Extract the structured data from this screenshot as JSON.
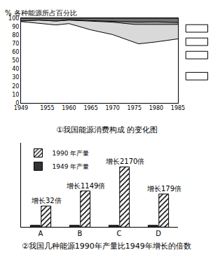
{
  "chart_data": [
    {
      "type": "area",
      "stacked": true,
      "grid": true,
      "title": "①我国能源消费构成 的变化图",
      "ylabel": "% 各种能源所占百分比",
      "x": [
        1949,
        1953,
        1957,
        1960,
        1965,
        1970,
        1975,
        1976,
        1980,
        1985
      ],
      "series": [
        {
          "color": "#ffffff",
          "values": [
            96.3,
            94.3,
            92.3,
            93.9,
            86.5,
            80.9,
            71.9,
            69.9,
            72.2,
            75.8
          ]
        },
        {
          "color": "#d9d9d9",
          "values": [
            0.7,
            3.8,
            4.6,
            4.1,
            10.3,
            14.7,
            21.1,
            23.0,
            20.7,
            17.1
          ]
        },
        {
          "color": "#a6a6a6",
          "values": [
            0,
            0,
            0.1,
            0.5,
            0.6,
            0.9,
            2.5,
            2.8,
            3.1,
            2.2
          ]
        },
        {
          "color": "#737373",
          "values": [
            3.0,
            1.9,
            3.0,
            1.5,
            2.6,
            3.5,
            4.5,
            4.3,
            4.0,
            4.9
          ]
        }
      ],
      "xlim": [
        1949,
        1985
      ],
      "xticks": [
        1949,
        1955,
        1960,
        1965,
        1970,
        1975,
        1980,
        1985
      ],
      "ylim": [
        0,
        100
      ],
      "yticks": [
        0,
        10,
        20,
        30,
        40,
        50,
        60,
        70,
        80,
        90,
        100
      ]
    },
    {
      "type": "bar",
      "tick_labels": "x",
      "legend": "upper left",
      "title": "②我国几种能源1990年产量比1949年增长的倍数",
      "categories": [
        "A",
        "B",
        "C",
        "D"
      ],
      "series": [
        {
          "name": "1949 年产量",
          "color": "#333333",
          "values": [
            3,
            3,
            3,
            3
          ]
        },
        {
          "name": "1990 年产量",
          "color": "#ffffff",
          "marker": "hatched",
          "values": [
            35,
            60,
            100,
            55
          ]
        }
      ],
      "annotations": [
        {
          "category": "A",
          "text": "增长32倍"
        },
        {
          "category": "B",
          "text": "增长1149倍"
        },
        {
          "category": "C",
          "text": "增长2170倍"
        },
        {
          "category": "D",
          "text": "增长179倍"
        }
      ],
      "ylim": [
        0,
        140
      ]
    }
  ]
}
